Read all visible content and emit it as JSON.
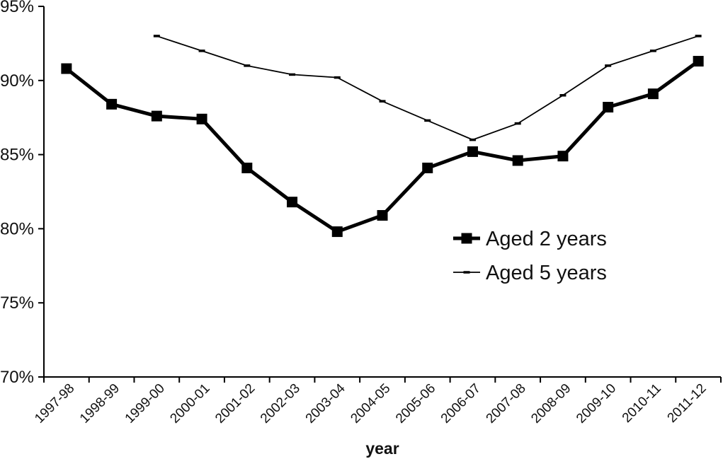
{
  "chart_data": {
    "type": "line",
    "title": "",
    "xlabel": "year",
    "ylabel": "",
    "categories": [
      "1997-98",
      "1998-99",
      "1999-00",
      "2000-01",
      "2001-02",
      "2002-03",
      "2003-04",
      "2004-05",
      "2005-06",
      "2006-07",
      "2007-08",
      "2008-09",
      "2009-10",
      "2010-11",
      "2011-12"
    ],
    "series": [
      {
        "name": "Aged 2 years",
        "style": "thick-square-markers",
        "values": [
          90.8,
          88.4,
          87.6,
          87.4,
          84.1,
          81.8,
          79.8,
          80.9,
          84.1,
          85.2,
          84.6,
          84.9,
          88.2,
          89.1,
          91.3
        ]
      },
      {
        "name": "Aged 5 years",
        "style": "thin-dash-markers",
        "values": [
          null,
          null,
          93.0,
          92.0,
          91.0,
          90.4,
          90.2,
          88.6,
          87.3,
          86.0,
          87.1,
          89.0,
          91.0,
          92.0,
          93.0
        ]
      }
    ],
    "ylim": [
      70,
      95
    ],
    "ytick_step": 5,
    "ytick_labels": [
      "70%",
      "75%",
      "80%",
      "85%",
      "90%",
      "95%"
    ],
    "grid": false,
    "legend_position": "center-right"
  },
  "colors": {
    "line": "#000000",
    "text": "#111111",
    "background": "#ffffff"
  }
}
